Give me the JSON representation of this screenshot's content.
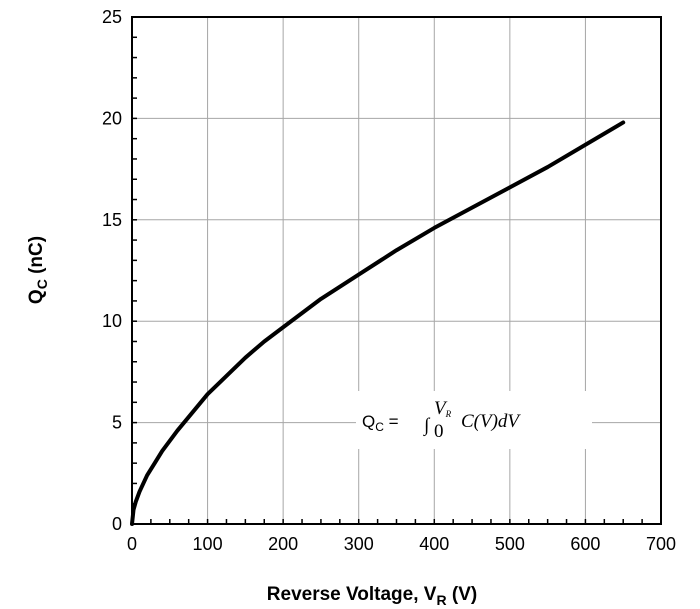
{
  "chart_data": {
    "type": "line",
    "xlabel": {
      "main": "Reverse Voltage, V",
      "sub": "R",
      "unit": " (V)"
    },
    "ylabel": {
      "main": "Q",
      "sub": "C",
      "unit": " (nC)"
    },
    "xlim": [
      0,
      700
    ],
    "ylim": [
      0,
      25
    ],
    "xticks": [
      "0",
      "100",
      "200",
      "300",
      "400",
      "500",
      "600",
      "700"
    ],
    "yticks": [
      "0",
      "5",
      "10",
      "15",
      "20",
      "25"
    ],
    "grid": true,
    "series": [
      {
        "color": "#000000",
        "x": [
          0,
          2,
          5,
          10,
          20,
          30,
          40,
          50,
          60,
          80,
          100,
          125,
          150,
          175,
          200,
          250,
          300,
          350,
          400,
          450,
          500,
          550,
          600,
          650
        ],
        "y": [
          0,
          0.7,
          1.1,
          1.6,
          2.4,
          3.0,
          3.6,
          4.1,
          4.6,
          5.5,
          6.4,
          7.3,
          8.2,
          9.0,
          9.7,
          11.1,
          12.3,
          13.5,
          14.6,
          15.6,
          16.6,
          17.6,
          18.7,
          19.8
        ]
      }
    ],
    "annotation": {
      "lhs": "Q",
      "lhs_sub": "C",
      "equals": " = ",
      "integral": "∫",
      "lower": "0",
      "upper": "V",
      "upper_sub": "R",
      "integrand": "C(V)dV"
    }
  }
}
